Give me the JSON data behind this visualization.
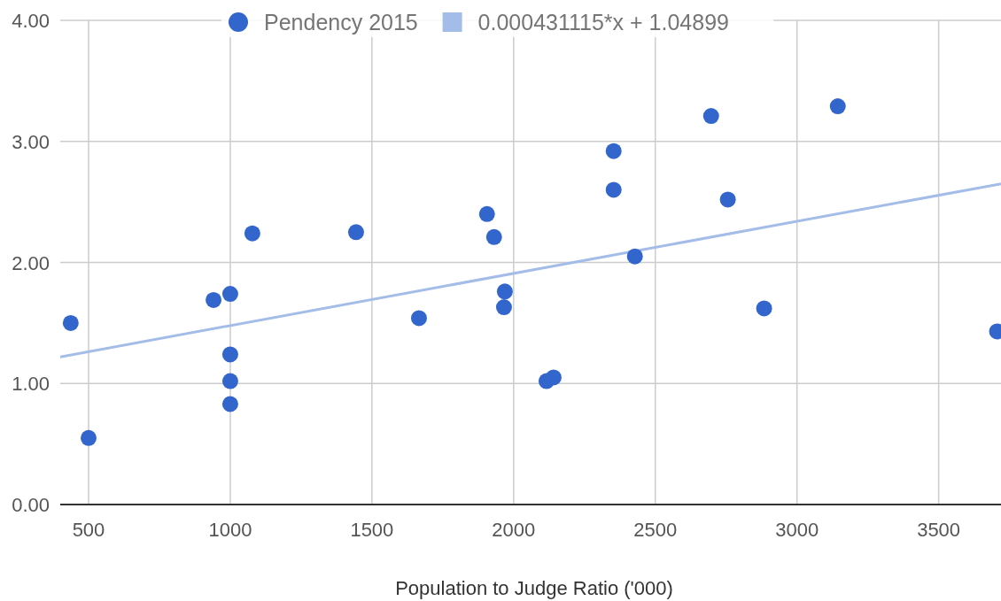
{
  "chart_data": {
    "type": "scatter",
    "xlabel": "Population to Judge Ratio ('000)",
    "xlim": [
      400,
      3720
    ],
    "xticks": [
      500,
      1000,
      1500,
      2000,
      2500,
      3000,
      3500
    ],
    "ylim": [
      0,
      4
    ],
    "yticks": [
      {
        "value": 0,
        "label": "0.00"
      },
      {
        "value": 1,
        "label": "1.00"
      },
      {
        "value": 2,
        "label": "2.00"
      },
      {
        "value": 3,
        "label": "3.00"
      },
      {
        "value": 4,
        "label": "4.00"
      }
    ],
    "grid": true,
    "legend": "top",
    "series": [
      {
        "name": "Pendency 2015",
        "marker": "circle",
        "color": "#3366cc",
        "x": [
          437,
          500,
          941,
          1000,
          1000,
          1000,
          1000,
          1078,
          1444,
          1666,
          1906,
          1931,
          1969,
          1966,
          2116,
          2141,
          2353,
          2353,
          2428,
          2697,
          2756,
          2884,
          3144,
          3706
        ],
        "values": [
          1.5,
          0.55,
          1.69,
          1.74,
          1.24,
          1.02,
          0.83,
          2.24,
          2.25,
          1.54,
          2.4,
          2.21,
          1.76,
          1.63,
          1.02,
          1.05,
          2.92,
          2.6,
          2.05,
          3.21,
          2.52,
          1.62,
          3.29,
          1.43
        ]
      },
      {
        "name": "0.000431115*x + 1.04899",
        "type": "line",
        "color": "#a4bde8",
        "x": [
          400,
          3720
        ],
        "values": [
          1.22,
          2.65
        ]
      }
    ]
  }
}
